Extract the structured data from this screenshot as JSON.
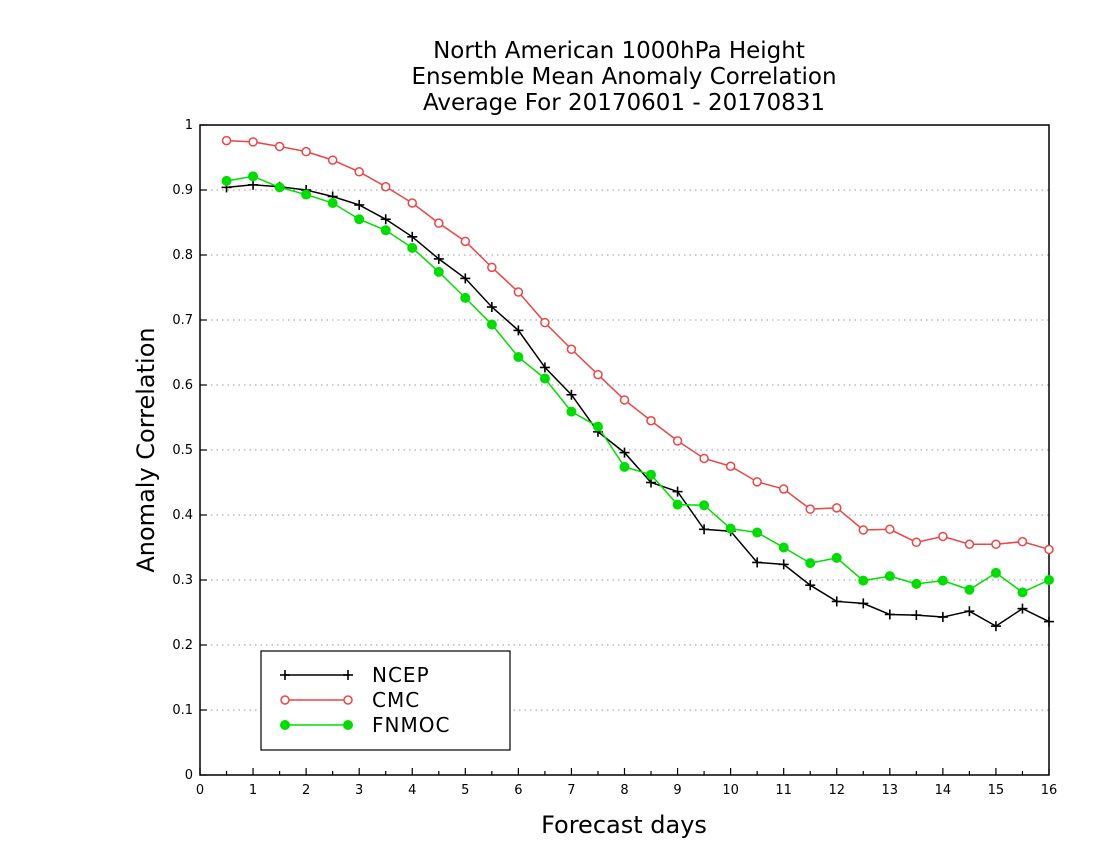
{
  "chart_data": {
    "type": "line",
    "title": [
      "North American 1000hPa Height",
      "Ensemble Mean Anomaly Correlation",
      "Average For 20170601 - 20170831"
    ],
    "xlabel": "Forecast days",
    "ylabel": "Anomaly Correlation",
    "xlim": [
      0,
      16
    ],
    "ylim": [
      0,
      1
    ],
    "xticks": [
      "0",
      "1",
      "2",
      "3",
      "4",
      "5",
      "6",
      "7",
      "8",
      "9",
      "10",
      "11",
      "12",
      "13",
      "14",
      "15",
      "16"
    ],
    "yticks": [
      "0",
      "0.1",
      "0.2",
      "0.3",
      "0.4",
      "0.5",
      "0.6",
      "0.7",
      "0.8",
      "0.9",
      "1"
    ],
    "grid": "horizontal-dotted",
    "legend_position": "bottom-left",
    "x": [
      0.5,
      1,
      1.5,
      2,
      2.5,
      3,
      3.5,
      4,
      4.5,
      5,
      5.5,
      6,
      6.5,
      7,
      7.5,
      8,
      8.5,
      9,
      9.5,
      10,
      10.5,
      11,
      11.5,
      12,
      12.5,
      13,
      13.5,
      14,
      14.5,
      15,
      15.5,
      16
    ],
    "series": [
      {
        "name": "NCEP",
        "color": "#000000",
        "marker": "plus",
        "values": [
          0.904,
          0.908,
          0.905,
          0.9,
          0.89,
          0.877,
          0.855,
          0.828,
          0.794,
          0.764,
          0.72,
          0.684,
          0.627,
          0.585,
          0.528,
          0.496,
          0.45,
          0.436,
          0.378,
          0.375,
          0.327,
          0.324,
          0.292,
          0.267,
          0.264,
          0.247,
          0.246,
          0.243,
          0.252,
          0.229,
          0.256,
          0.236
        ]
      },
      {
        "name": "CMC",
        "color": "#ee4444",
        "marker": "open-circle",
        "values": [
          0.976,
          0.974,
          0.967,
          0.959,
          0.946,
          0.928,
          0.905,
          0.88,
          0.849,
          0.821,
          0.781,
          0.743,
          0.696,
          0.655,
          0.616,
          0.577,
          0.545,
          0.514,
          0.487,
          0.475,
          0.451,
          0.44,
          0.409,
          0.411,
          0.377,
          0.378,
          0.358,
          0.367,
          0.355,
          0.355,
          0.359,
          0.347
        ]
      },
      {
        "name": "FNMOC",
        "color": "#00dd00",
        "marker": "filled-circle",
        "values": [
          0.914,
          0.921,
          0.904,
          0.893,
          0.88,
          0.855,
          0.838,
          0.811,
          0.774,
          0.734,
          0.693,
          0.643,
          0.61,
          0.559,
          0.536,
          0.474,
          0.462,
          0.416,
          0.415,
          0.379,
          0.373,
          0.35,
          0.326,
          0.334,
          0.299,
          0.306,
          0.294,
          0.299,
          0.285,
          0.311,
          0.281,
          0.3
        ]
      }
    ]
  }
}
